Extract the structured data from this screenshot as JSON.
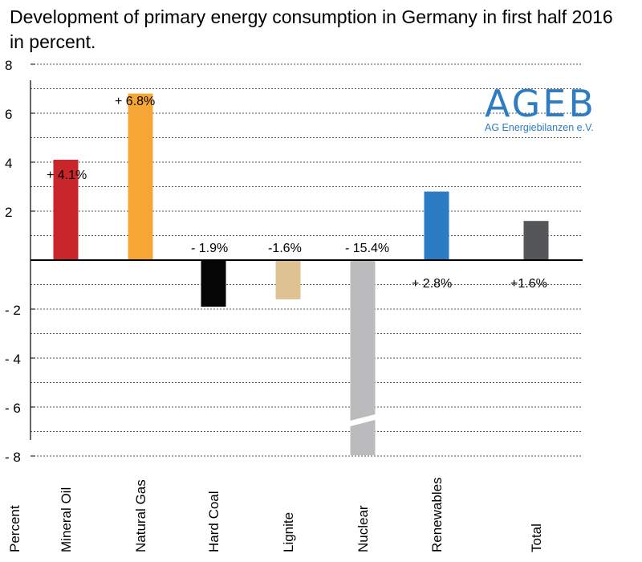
{
  "title": "Development of primary energy consumption in Germany in first half 2016 in percent.",
  "logo": {
    "main": "AGEB",
    "sub": "AG Energiebilanzen e.V."
  },
  "chart_data": {
    "type": "bar",
    "title": "Development of primary energy consumption in Germany in first half 2016 in percent.",
    "ylabel": "Percent",
    "xlabel": "",
    "ylim": [
      -8,
      8
    ],
    "yticks": [
      8,
      6,
      4,
      2,
      -2,
      -4,
      -6,
      -8
    ],
    "ytick_labels": [
      "8",
      "6",
      "4",
      "2",
      "- 2",
      "- 4",
      "- 6",
      "- 8"
    ],
    "grid": true,
    "categories": [
      "Mineral Oil",
      "Natural Gas",
      "Hard Coal",
      "Lignite",
      "Nuclear",
      "Renewables",
      "Total"
    ],
    "values": [
      4.1,
      6.8,
      -1.9,
      -1.6,
      -15.4,
      2.8,
      1.6
    ],
    "labels": [
      "+ 4.1%",
      "+ 6.8%",
      "- 1.9%",
      "-1.6%",
      "- 15.4%",
      "+ 2.8%",
      "+1.6%"
    ],
    "colors": [
      "#c8262a",
      "#f5a634",
      "#050505",
      "#dfc292",
      "#bbbbbe",
      "#2a7cc5",
      "#555658"
    ],
    "axis_break": "Nuclear"
  }
}
